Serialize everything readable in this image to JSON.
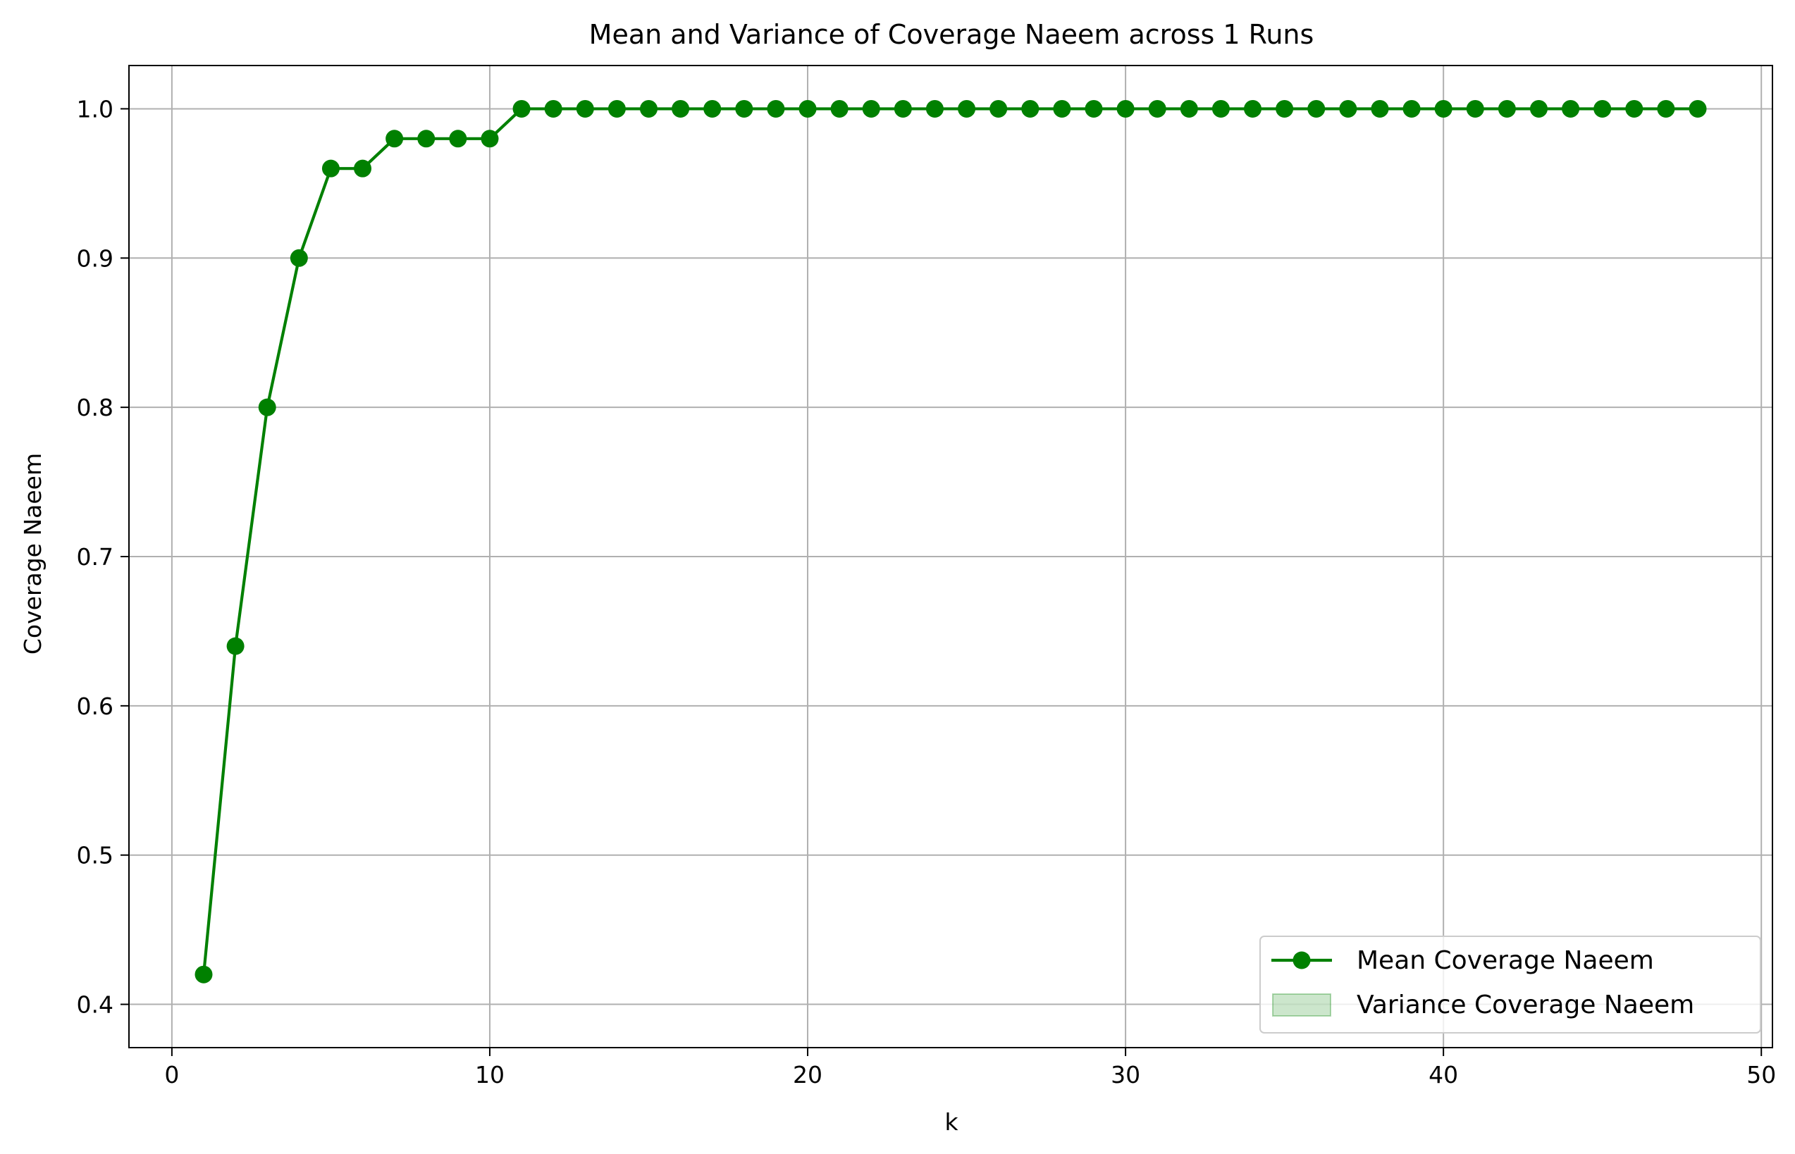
{
  "chart_data": {
    "type": "line",
    "title": "Mean and Variance of Coverage Naeem across 1 Runs",
    "xlabel": "k",
    "ylabel": "Coverage Naeem",
    "xlim": [
      -1.35,
      50.35
    ],
    "ylim": [
      0.371,
      1.029
    ],
    "x_ticks": [
      0,
      10,
      20,
      30,
      40,
      50
    ],
    "y_ticks": [
      0.4,
      0.5,
      0.6,
      0.7,
      0.8,
      0.9,
      1.0
    ],
    "x_tick_labels": [
      "0",
      "10",
      "20",
      "30",
      "40",
      "50"
    ],
    "y_tick_labels": [
      "0.4",
      "0.5",
      "0.6",
      "0.7",
      "0.8",
      "0.9",
      "1.0"
    ],
    "grid": true,
    "legend_position": "lower-right",
    "series": [
      {
        "name": "Mean Coverage Naeem",
        "color": "#008000",
        "marker": "circle",
        "x": [
          1,
          2,
          3,
          4,
          5,
          6,
          7,
          8,
          9,
          10,
          11,
          12,
          13,
          14,
          15,
          16,
          17,
          18,
          19,
          20,
          21,
          22,
          23,
          24,
          25,
          26,
          27,
          28,
          29,
          30,
          31,
          32,
          33,
          34,
          35,
          36,
          37,
          38,
          39,
          40,
          41,
          42,
          43,
          44,
          45,
          46,
          47,
          48
        ],
        "y": [
          0.42,
          0.64,
          0.8,
          0.9,
          0.96,
          0.96,
          0.98,
          0.98,
          0.98,
          0.98,
          1.0,
          1.0,
          1.0,
          1.0,
          1.0,
          1.0,
          1.0,
          1.0,
          1.0,
          1.0,
          1.0,
          1.0,
          1.0,
          1.0,
          1.0,
          1.0,
          1.0,
          1.0,
          1.0,
          1.0,
          1.0,
          1.0,
          1.0,
          1.0,
          1.0,
          1.0,
          1.0,
          1.0,
          1.0,
          1.0,
          1.0,
          1.0,
          1.0,
          1.0,
          1.0,
          1.0,
          1.0,
          1.0
        ]
      },
      {
        "name": "Variance Coverage Naeem",
        "type": "area",
        "color": "#008000",
        "opacity": 0.2,
        "variance": [
          0,
          0,
          0,
          0,
          0,
          0,
          0,
          0,
          0,
          0,
          0,
          0,
          0,
          0,
          0,
          0,
          0,
          0,
          0,
          0,
          0,
          0,
          0,
          0,
          0,
          0,
          0,
          0,
          0,
          0,
          0,
          0,
          0,
          0,
          0,
          0,
          0,
          0,
          0,
          0,
          0,
          0,
          0,
          0,
          0,
          0,
          0,
          0
        ]
      }
    ]
  }
}
